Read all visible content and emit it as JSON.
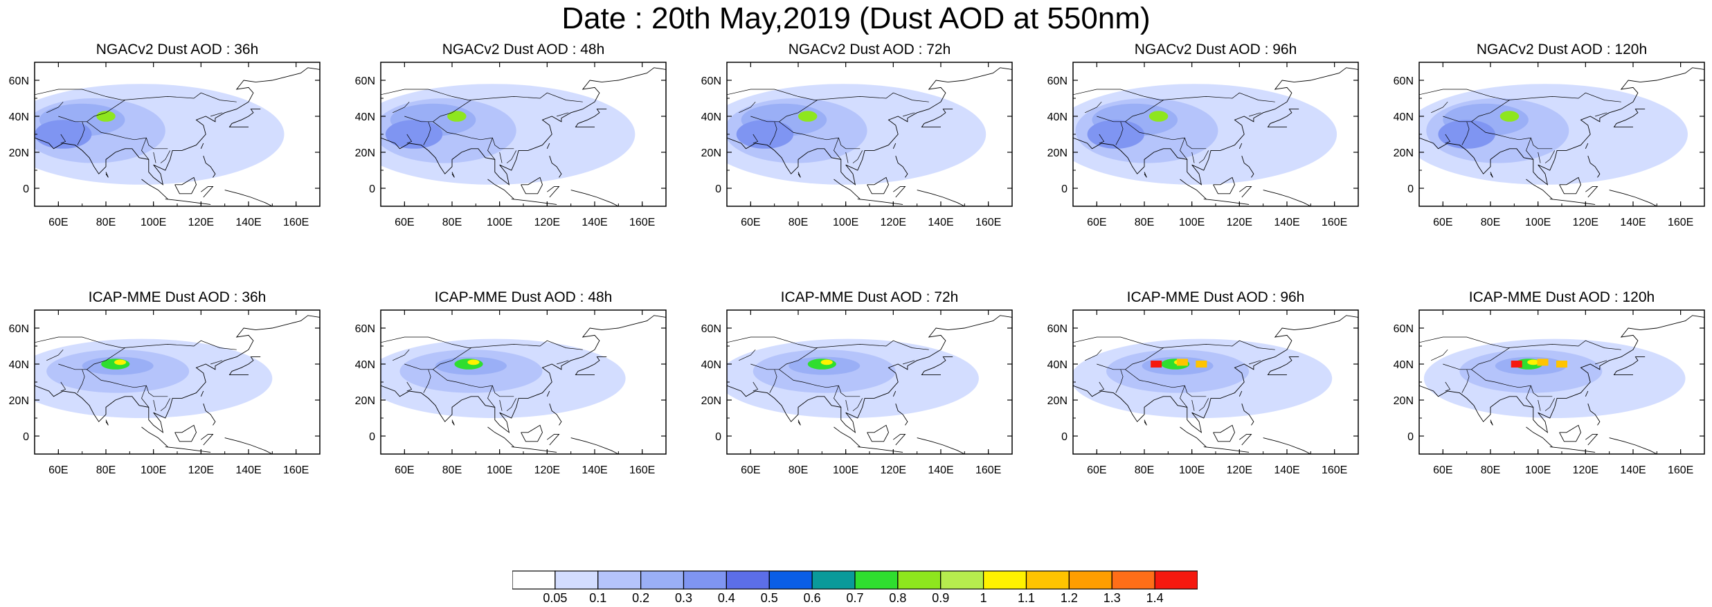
{
  "title": "Date : 20th May,2019 (Dust AOD at 550nm)",
  "panels": [
    {
      "title": "NGACv2 Dust AOD : 36h"
    },
    {
      "title": "NGACv2 Dust AOD : 48h"
    },
    {
      "title": "NGACv2 Dust AOD : 72h"
    },
    {
      "title": "NGACv2 Dust AOD : 96h"
    },
    {
      "title": "NGACv2 Dust AOD : 120h"
    },
    {
      "title": "ICAP-MME Dust AOD : 36h"
    },
    {
      "title": "ICAP-MME Dust AOD : 48h"
    },
    {
      "title": "ICAP-MME Dust AOD : 72h"
    },
    {
      "title": "ICAP-MME Dust AOD : 96h"
    },
    {
      "title": "ICAP-MME Dust AOD : 120h"
    }
  ],
  "map_axes": {
    "lat_labels": [
      "60N",
      "40N",
      "20N",
      "0"
    ],
    "lat_values": [
      60,
      40,
      20,
      0
    ],
    "lon_labels": [
      "60E",
      "80E",
      "100E",
      "120E",
      "140E",
      "160E"
    ],
    "lon_values": [
      60,
      80,
      100,
      120,
      140,
      160
    ],
    "lon_range": [
      50,
      170
    ],
    "lat_range": [
      -10,
      70
    ]
  },
  "colorbar": {
    "labels": [
      "0.05",
      "0.1",
      "0.2",
      "0.3",
      "0.4",
      "0.5",
      "0.6",
      "0.7",
      "0.8",
      "0.9",
      "1",
      "1.1",
      "1.2",
      "1.3",
      "1.4"
    ],
    "colors": [
      "#ffffff",
      "#d3ddff",
      "#b5c4fb",
      "#9aaff6",
      "#7f95f2",
      "#5c6ee8",
      "#0a5ee6",
      "#0a9a9a",
      "#2fde2f",
      "#8ee61e",
      "#b6ec4e",
      "#fff200",
      "#ffc400",
      "#ff9e00",
      "#ff6e18",
      "#f5190f"
    ]
  }
}
